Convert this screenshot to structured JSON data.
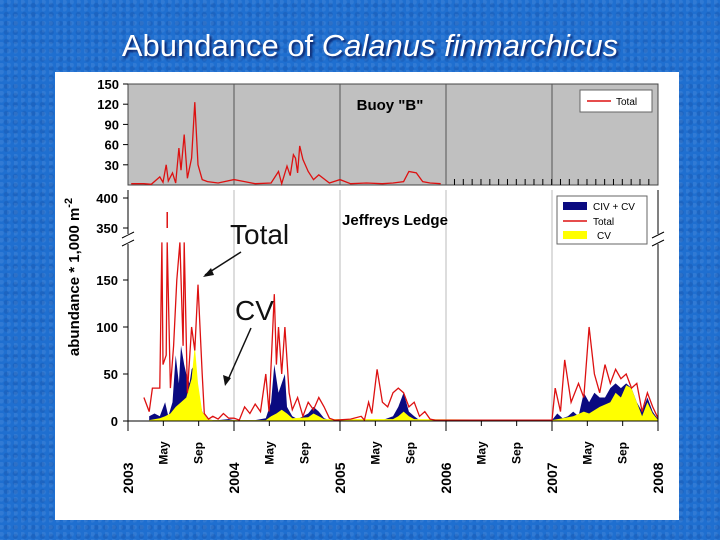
{
  "slide": {
    "title_prefix": "Abundance of ",
    "title_species": "Calanus finmarchicus"
  },
  "colors": {
    "background": "#1f6fd0",
    "total_line": "#dd1111",
    "civ_cv_fill": "#0a0a80",
    "cv_fill": "#ffff00",
    "top_panel_bg": "#c0c0c0"
  },
  "chart_data": [
    {
      "type": "line",
      "title": "Buoy \"B\"",
      "legend": [
        "Total"
      ],
      "legend_position": "top-right",
      "ylim": [
        0,
        150
      ],
      "yticks": [
        30,
        60,
        90,
        120,
        150
      ],
      "xlim": [
        2003,
        2008
      ],
      "series": [
        {
          "name": "Total",
          "points": [
            [
              2003.03,
              2
            ],
            [
              2003.15,
              2
            ],
            [
              2003.22,
              1
            ],
            [
              2003.3,
              12
            ],
            [
              2003.33,
              4
            ],
            [
              2003.36,
              30
            ],
            [
              2003.38,
              6
            ],
            [
              2003.42,
              18
            ],
            [
              2003.45,
              3
            ],
            [
              2003.48,
              55
            ],
            [
              2003.5,
              22
            ],
            [
              2003.53,
              75
            ],
            [
              2003.56,
              10
            ],
            [
              2003.6,
              40
            ],
            [
              2003.63,
              123
            ],
            [
              2003.66,
              30
            ],
            [
              2003.7,
              8
            ],
            [
              2003.75,
              5
            ],
            [
              2003.85,
              3
            ],
            [
              2004.0,
              8
            ],
            [
              2004.1,
              5
            ],
            [
              2004.2,
              2
            ],
            [
              2004.35,
              3
            ],
            [
              2004.42,
              20
            ],
            [
              2004.45,
              2
            ],
            [
              2004.5,
              28
            ],
            [
              2004.53,
              14
            ],
            [
              2004.56,
              45
            ],
            [
              2004.58,
              40
            ],
            [
              2004.6,
              18
            ],
            [
              2004.62,
              58
            ],
            [
              2004.65,
              38
            ],
            [
              2004.7,
              20
            ],
            [
              2004.75,
              8
            ],
            [
              2004.8,
              15
            ],
            [
              2004.9,
              3
            ],
            [
              2005.0,
              8
            ],
            [
              2005.1,
              2
            ],
            [
              2005.25,
              3
            ],
            [
              2005.4,
              2
            ],
            [
              2005.5,
              3
            ],
            [
              2005.6,
              5
            ],
            [
              2005.65,
              20
            ],
            [
              2005.72,
              18
            ],
            [
              2005.78,
              5
            ],
            [
              2005.85,
              3
            ],
            [
              2005.95,
              2
            ]
          ]
        }
      ]
    },
    {
      "type": "area",
      "title": "Jeffreys Ledge",
      "ylabel_prefix": "abundance * 1,000 m",
      "ylabel_exp": "-2",
      "ylim": [
        0,
        400
      ],
      "yticks": [
        0,
        50,
        100,
        150,
        350,
        400
      ],
      "axis_break": [
        190,
        340
      ],
      "xlim": [
        2003,
        2008
      ],
      "xtick_years": [
        "2003",
        "2004",
        "2005",
        "2006",
        "2007",
        "2008"
      ],
      "xtick_months": [
        "May",
        "Sep"
      ],
      "legend": [
        "CIV + CV",
        "Total",
        "CV"
      ],
      "legend_position": "top-right",
      "annotations": [
        "Total",
        "CV"
      ],
      "series": [
        {
          "name": "Total",
          "points": [
            [
              2003.15,
              25
            ],
            [
              2003.2,
              10
            ],
            [
              2003.23,
              35
            ],
            [
              2003.3,
              35
            ],
            [
              2003.32,
              200
            ],
            [
              2003.33,
              60
            ],
            [
              2003.36,
              70
            ],
            [
              2003.37,
              200
            ],
            [
              2003.4,
              35
            ],
            [
              2003.43,
              80
            ],
            [
              2003.46,
              150
            ],
            [
              2003.49,
              200
            ],
            [
              2003.52,
              80
            ],
            [
              2003.53,
              200
            ],
            [
              2003.56,
              30
            ],
            [
              2003.6,
              100
            ],
            [
              2003.63,
              75
            ],
            [
              2003.66,
              145
            ],
            [
              2003.7,
              50
            ],
            [
              2003.72,
              8
            ],
            [
              2003.76,
              2
            ],
            [
              2003.8,
              5
            ],
            [
              2003.85,
              2
            ],
            [
              2003.9,
              8
            ],
            [
              2003.95,
              3
            ],
            [
              2004.0,
              3
            ],
            [
              2004.05,
              1
            ],
            [
              2004.1,
              15
            ],
            [
              2004.15,
              8
            ],
            [
              2004.2,
              18
            ],
            [
              2004.25,
              10
            ],
            [
              2004.3,
              50
            ],
            [
              2004.33,
              10
            ],
            [
              2004.38,
              135
            ],
            [
              2004.4,
              60
            ],
            [
              2004.42,
              100
            ],
            [
              2004.45,
              50
            ],
            [
              2004.48,
              100
            ],
            [
              2004.52,
              30
            ],
            [
              2004.55,
              12
            ],
            [
              2004.6,
              25
            ],
            [
              2004.65,
              5
            ],
            [
              2004.7,
              20
            ],
            [
              2004.75,
              12
            ],
            [
              2004.8,
              25
            ],
            [
              2004.85,
              15
            ],
            [
              2004.9,
              3
            ],
            [
              2004.95,
              1
            ],
            [
              2005.1,
              2
            ],
            [
              2005.2,
              5
            ],
            [
              2005.23,
              1
            ],
            [
              2005.27,
              20
            ],
            [
              2005.3,
              8
            ],
            [
              2005.35,
              55
            ],
            [
              2005.4,
              20
            ],
            [
              2005.45,
              15
            ],
            [
              2005.5,
              30
            ],
            [
              2005.55,
              35
            ],
            [
              2005.6,
              30
            ],
            [
              2005.65,
              15
            ],
            [
              2005.7,
              20
            ],
            [
              2005.75,
              5
            ],
            [
              2005.8,
              10
            ],
            [
              2005.85,
              2
            ],
            [
              2005.9,
              1
            ],
            [
              2006.0,
              1
            ],
            [
              2006.5,
              1
            ],
            [
              2007.0,
              1
            ],
            [
              2007.03,
              35
            ],
            [
              2007.08,
              10
            ],
            [
              2007.12,
              65
            ],
            [
              2007.18,
              20
            ],
            [
              2007.25,
              40
            ],
            [
              2007.3,
              25
            ],
            [
              2007.35,
              100
            ],
            [
              2007.4,
              50
            ],
            [
              2007.45,
              30
            ],
            [
              2007.5,
              60
            ],
            [
              2007.55,
              40
            ],
            [
              2007.6,
              55
            ],
            [
              2007.65,
              45
            ],
            [
              2007.7,
              50
            ],
            [
              2007.75,
              35
            ],
            [
              2007.8,
              40
            ],
            [
              2007.85,
              10
            ],
            [
              2007.9,
              30
            ],
            [
              2007.95,
              15
            ],
            [
              2008.0,
              3
            ]
          ]
        },
        {
          "name": "CIV + CV",
          "points": [
            [
              2003.2,
              5
            ],
            [
              2003.25,
              8
            ],
            [
              2003.3,
              5
            ],
            [
              2003.35,
              20
            ],
            [
              2003.38,
              5
            ],
            [
              2003.42,
              20
            ],
            [
              2003.45,
              70
            ],
            [
              2003.48,
              40
            ],
            [
              2003.5,
              80
            ],
            [
              2003.53,
              60
            ],
            [
              2003.55,
              50
            ],
            [
              2003.58,
              40
            ],
            [
              2003.6,
              55
            ],
            [
              2003.63,
              60
            ],
            [
              2003.66,
              30
            ],
            [
              2003.7,
              10
            ],
            [
              2003.75,
              2
            ],
            [
              2003.8,
              1
            ],
            [
              2003.85,
              1
            ],
            [
              2003.95,
              2
            ],
            [
              2004.0,
              1
            ],
            [
              2004.2,
              1
            ],
            [
              2004.3,
              3
            ],
            [
              2004.35,
              20
            ],
            [
              2004.38,
              60
            ],
            [
              2004.42,
              30
            ],
            [
              2004.45,
              40
            ],
            [
              2004.48,
              50
            ],
            [
              2004.5,
              15
            ],
            [
              2004.55,
              5
            ],
            [
              2004.6,
              2
            ],
            [
              2004.7,
              8
            ],
            [
              2004.75,
              15
            ],
            [
              2004.8,
              10
            ],
            [
              2004.85,
              3
            ],
            [
              2004.9,
              1
            ],
            [
              2005.4,
              1
            ],
            [
              2005.5,
              5
            ],
            [
              2005.55,
              15
            ],
            [
              2005.6,
              30
            ],
            [
              2005.65,
              10
            ],
            [
              2005.7,
              5
            ],
            [
              2005.75,
              1
            ],
            [
              2007.0,
              1
            ],
            [
              2007.05,
              8
            ],
            [
              2007.1,
              3
            ],
            [
              2007.15,
              5
            ],
            [
              2007.2,
              10
            ],
            [
              2007.25,
              5
            ],
            [
              2007.3,
              30
            ],
            [
              2007.35,
              20
            ],
            [
              2007.4,
              30
            ],
            [
              2007.45,
              25
            ],
            [
              2007.5,
              25
            ],
            [
              2007.55,
              35
            ],
            [
              2007.6,
              40
            ],
            [
              2007.65,
              35
            ],
            [
              2007.7,
              40
            ],
            [
              2007.75,
              35
            ],
            [
              2007.8,
              20
            ],
            [
              2007.85,
              10
            ],
            [
              2007.9,
              25
            ],
            [
              2007.95,
              10
            ],
            [
              2008.0,
              2
            ]
          ]
        },
        {
          "name": "CV",
          "points": [
            [
              2003.2,
              1
            ],
            [
              2003.3,
              3
            ],
            [
              2003.35,
              5
            ],
            [
              2003.4,
              8
            ],
            [
              2003.45,
              15
            ],
            [
              2003.5,
              20
            ],
            [
              2003.55,
              25
            ],
            [
              2003.6,
              45
            ],
            [
              2003.63,
              80
            ],
            [
              2003.66,
              40
            ],
            [
              2003.7,
              10
            ],
            [
              2003.75,
              2
            ],
            [
              2003.8,
              1
            ],
            [
              2004.3,
              1
            ],
            [
              2004.35,
              5
            ],
            [
              2004.4,
              8
            ],
            [
              2004.45,
              12
            ],
            [
              2004.5,
              8
            ],
            [
              2004.55,
              3
            ],
            [
              2004.7,
              4
            ],
            [
              2004.75,
              8
            ],
            [
              2004.8,
              5
            ],
            [
              2004.85,
              2
            ],
            [
              2005.5,
              2
            ],
            [
              2005.55,
              5
            ],
            [
              2005.6,
              10
            ],
            [
              2005.65,
              5
            ],
            [
              2005.7,
              2
            ],
            [
              2007.0,
              1
            ],
            [
              2007.1,
              3
            ],
            [
              2007.2,
              5
            ],
            [
              2007.3,
              10
            ],
            [
              2007.35,
              8
            ],
            [
              2007.45,
              15
            ],
            [
              2007.55,
              20
            ],
            [
              2007.6,
              30
            ],
            [
              2007.65,
              25
            ],
            [
              2007.7,
              38
            ],
            [
              2007.75,
              35
            ],
            [
              2007.8,
              20
            ],
            [
              2007.85,
              5
            ],
            [
              2007.9,
              20
            ],
            [
              2007.95,
              8
            ],
            [
              2008.0,
              1
            ]
          ]
        }
      ]
    }
  ]
}
